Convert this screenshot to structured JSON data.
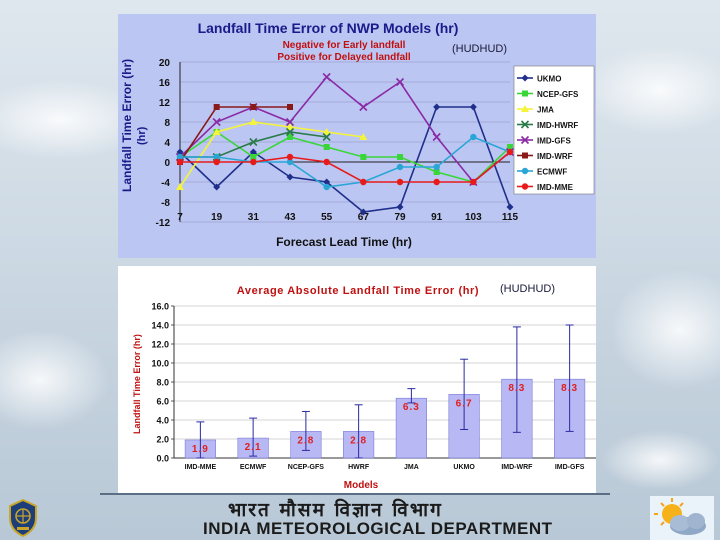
{
  "chart_data": [
    {
      "type": "line",
      "title": "Landfall Time Error of NWP Models (hr)",
      "subtitle_lines": [
        "Negative for Early landfall",
        "Positive for Delayed landfall"
      ],
      "tag": "(HUDHUD)",
      "xlabel": "Forecast Lead Time (hr)",
      "ylabel": "Landfall Time Error (hr)",
      "x": [
        7,
        19,
        31,
        43,
        55,
        67,
        79,
        91,
        103,
        115
      ],
      "xtick_labels": [
        "7",
        "19",
        "31",
        "43",
        "55",
        "67",
        "79",
        "91",
        "103",
        "115"
      ],
      "ylim": [
        -12,
        20
      ],
      "yticks": [
        -12,
        -8,
        -4,
        0,
        4,
        8,
        12,
        16,
        20
      ],
      "ytick_labels": [
        "-12",
        "-8",
        "-4",
        "0",
        "4",
        "8",
        "12",
        "16",
        "20"
      ],
      "series": [
        {
          "name": "UKMO",
          "color": "#1f2f8a",
          "marker": "diamond",
          "values": [
            2,
            -5,
            2,
            -3,
            -4,
            -10,
            -9,
            11,
            11,
            -9
          ]
        },
        {
          "name": "NCEP-GFS",
          "color": "#39d639",
          "marker": "square",
          "values": [
            1,
            6,
            1,
            5,
            3,
            1,
            1,
            -2,
            -4,
            3
          ]
        },
        {
          "name": "JMA",
          "color": "#f4f43a",
          "marker": "triangle",
          "values": [
            -5,
            6,
            8,
            7,
            6,
            5,
            null,
            null,
            null,
            null
          ]
        },
        {
          "name": "IMD-HWRF",
          "color": "#2a7a4a",
          "marker": "x",
          "values": [
            1,
            1,
            4,
            6,
            5,
            null,
            null,
            null,
            null,
            null
          ]
        },
        {
          "name": "IMD-GFS",
          "color": "#8a2aa6",
          "marker": "x",
          "values": [
            1,
            8,
            11,
            8,
            17,
            11,
            16,
            5,
            -4,
            2
          ]
        },
        {
          "name": "IMD-WRF",
          "color": "#8a1a1a",
          "marker": "square",
          "values": [
            0,
            11,
            11,
            11,
            null,
            null,
            null,
            null,
            null,
            null
          ]
        },
        {
          "name": "ECMWF",
          "color": "#2aa6d6",
          "marker": "circle",
          "values": [
            1,
            1,
            0,
            0,
            -5,
            -4,
            -1,
            -1,
            5,
            2
          ]
        },
        {
          "name": "IMD-MME",
          "color": "#e81a1a",
          "marker": "circle",
          "values": [
            0,
            0,
            0,
            1,
            0,
            -4,
            -4,
            -4,
            -4,
            2
          ]
        }
      ]
    },
    {
      "type": "bar",
      "title": "Average Absolute Landfall Time Error (hr)",
      "tag": "(HUDHUD)",
      "xlabel": "Models",
      "ylabel": "Landfall Time Error (hr)",
      "categories": [
        "IMD-MME",
        "ECMWF",
        "NCEP-GFS",
        "HWRF",
        "JMA",
        "UKMO",
        "IMD-WRF",
        "IMD-GFS"
      ],
      "values": [
        1.9,
        2.1,
        2.8,
        2.8,
        6.3,
        6.7,
        8.3,
        8.3
      ],
      "value_labels": [
        "1.9",
        "2.1",
        "2.8",
        "2.8",
        "6.3",
        "6.7",
        "8.3",
        "8.3"
      ],
      "error_low": [
        0,
        0.2,
        0.8,
        0,
        5.8,
        3.0,
        2.7,
        2.8
      ],
      "error_high": [
        3.8,
        4.2,
        4.9,
        5.6,
        7.3,
        10.4,
        13.8,
        14.0
      ],
      "ylim": [
        0,
        16
      ],
      "yticks": [
        0,
        2,
        4,
        6,
        8,
        10,
        12,
        14,
        16
      ],
      "ytick_labels": [
        "0.0",
        "2.0",
        "4.0",
        "6.0",
        "8.0",
        "10.0",
        "12.0",
        "14.0",
        "16.0"
      ]
    }
  ],
  "footer": {
    "hindi": "भारत मौसम विज्ञान विभाग",
    "english": "INDIA METEOROLOGICAL DEPARTMENT"
  },
  "colors": {
    "panel1_bg": "#bcc6f2",
    "title_dark": "#1a1a8a",
    "title_red": "#c01010",
    "bar_fill": "#b8b8f4",
    "value_label": "#e02020"
  }
}
